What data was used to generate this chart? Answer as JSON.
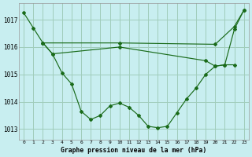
{
  "title": "Graphe pression niveau de la mer (hPa)",
  "background_color": "#c8eef0",
  "grid_color": "#a0ccbb",
  "line_color": "#1a6b1a",
  "xlim": [
    -0.5,
    23.5
  ],
  "ylim": [
    1012.6,
    1017.6
  ],
  "yticks": [
    1013,
    1014,
    1015,
    1016,
    1017
  ],
  "xtick_labels": [
    "0",
    "1",
    "2",
    "3",
    "4",
    "5",
    "6",
    "7",
    "8",
    "9",
    "10",
    "11",
    "12",
    "13",
    "14",
    "15",
    "16",
    "17",
    "18",
    "19",
    "20",
    "21",
    "22",
    "23"
  ],
  "xticks": [
    0,
    1,
    2,
    3,
    4,
    5,
    6,
    7,
    8,
    9,
    10,
    11,
    12,
    13,
    14,
    15,
    16,
    17,
    18,
    19,
    20,
    21,
    22,
    23
  ],
  "series": [
    {
      "x": [
        0,
        1,
        2,
        3,
        4,
        5,
        6,
        7,
        8,
        9,
        10,
        11,
        12,
        13,
        14,
        15,
        16,
        17,
        18,
        19,
        20,
        21,
        22,
        23
      ],
      "y": [
        1017.25,
        1016.7,
        1016.15,
        1015.75,
        1015.05,
        1014.65,
        1013.65,
        1013.35,
        1013.5,
        1013.85,
        1013.95,
        1013.8,
        1013.5,
        1013.1,
        1013.05,
        1013.1,
        1013.6,
        1014.1,
        1014.5,
        1015.0,
        1015.3,
        1015.35,
        1016.65,
        1017.35
      ]
    },
    {
      "x": [
        2,
        10,
        20,
        22,
        23
      ],
      "y": [
        1016.15,
        1016.15,
        1016.1,
        1016.75,
        1017.35
      ]
    },
    {
      "x": [
        2,
        3,
        10,
        19,
        20,
        21,
        22
      ],
      "y": [
        1016.15,
        1015.75,
        1016.0,
        1015.5,
        1015.3,
        1015.35,
        1015.35
      ]
    }
  ]
}
